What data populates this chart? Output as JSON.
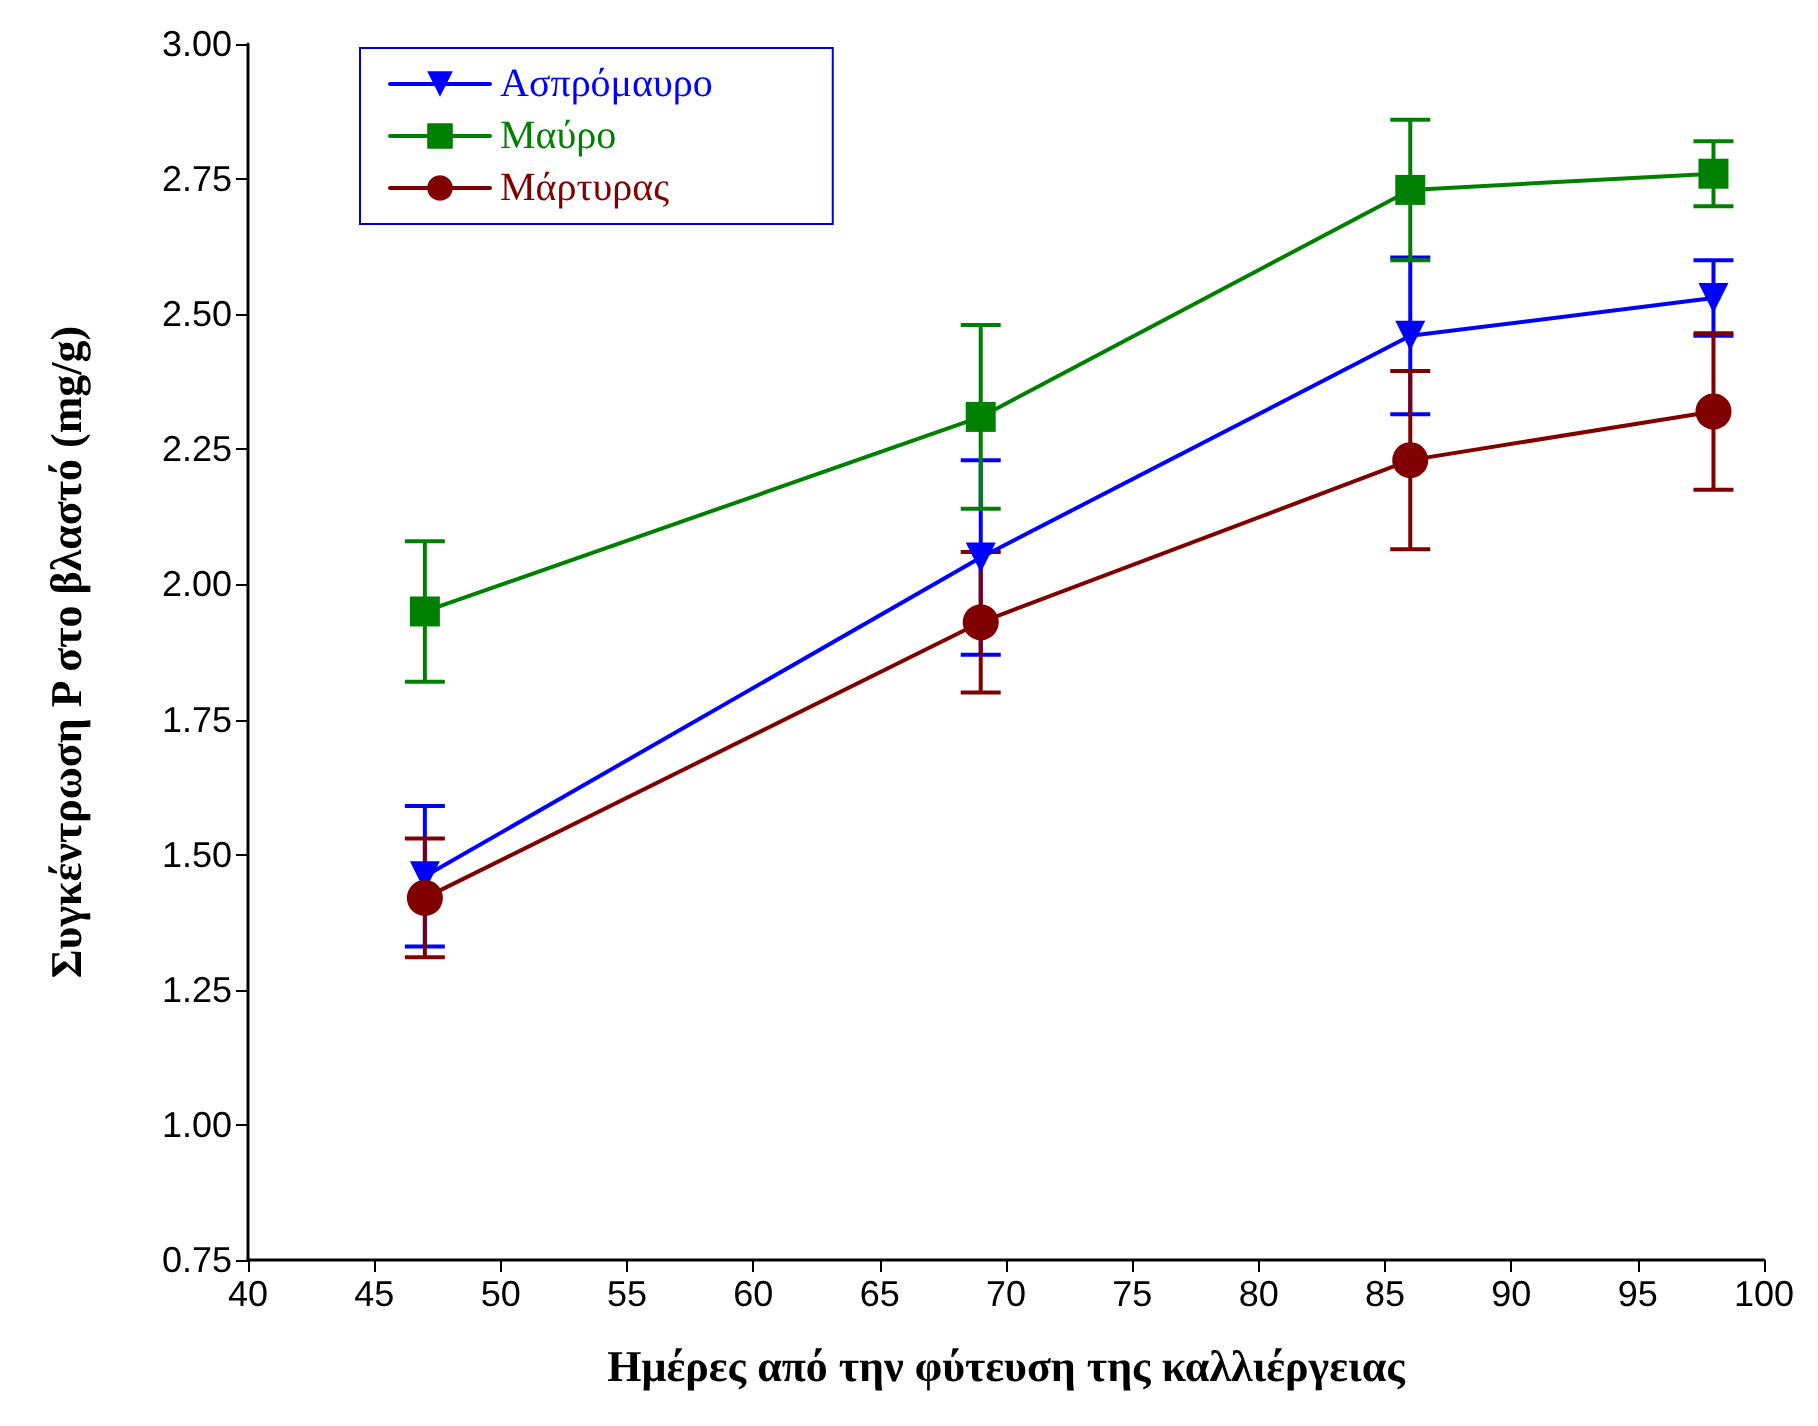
{
  "chart_data": {
    "type": "line",
    "xlabel": "Ημέρες από την φύτευση της καλλιέργειας",
    "ylabel": "Συγκέντρωση P στο βλαστό (mg/g)",
    "x": [
      47,
      69,
      86,
      98
    ],
    "series": [
      {
        "name": "Ασπρόμαυρο",
        "color": "#0000ff",
        "marker": "triangle-down",
        "values": [
          1.46,
          2.05,
          2.46,
          2.53
        ],
        "errors": [
          0.13,
          0.18,
          0.145,
          0.07
        ]
      },
      {
        "name": "Μαύρο",
        "color": "#008000",
        "marker": "square",
        "values": [
          1.95,
          2.31,
          2.73,
          2.76
        ],
        "errors": [
          0.13,
          0.17,
          0.13,
          0.06
        ]
      },
      {
        "name": "Μάρτυρας",
        "color": "#800000",
        "marker": "circle",
        "values": [
          1.42,
          1.93,
          2.23,
          2.32
        ],
        "errors": [
          0.11,
          0.13,
          0.165,
          0.145
        ]
      }
    ],
    "xlim": [
      40,
      100
    ],
    "xticks": [
      40,
      45,
      50,
      55,
      60,
      65,
      70,
      75,
      80,
      85,
      90,
      95,
      100
    ],
    "ylim": [
      0.75,
      3.0
    ],
    "yticks": [
      0.75,
      {
        "value": 1.0,
        "label": "1.00"
      },
      1.25,
      {
        "value": 1.5,
        "label": "1.50"
      },
      1.75,
      {
        "value": 2.0,
        "label": "2.00"
      },
      2.25,
      {
        "value": 2.5,
        "label": "2.50"
      },
      2.75,
      {
        "value": 3.0,
        "label": "3.00"
      }
    ],
    "grid": false,
    "legend": "top left",
    "line_style": "solid"
  }
}
